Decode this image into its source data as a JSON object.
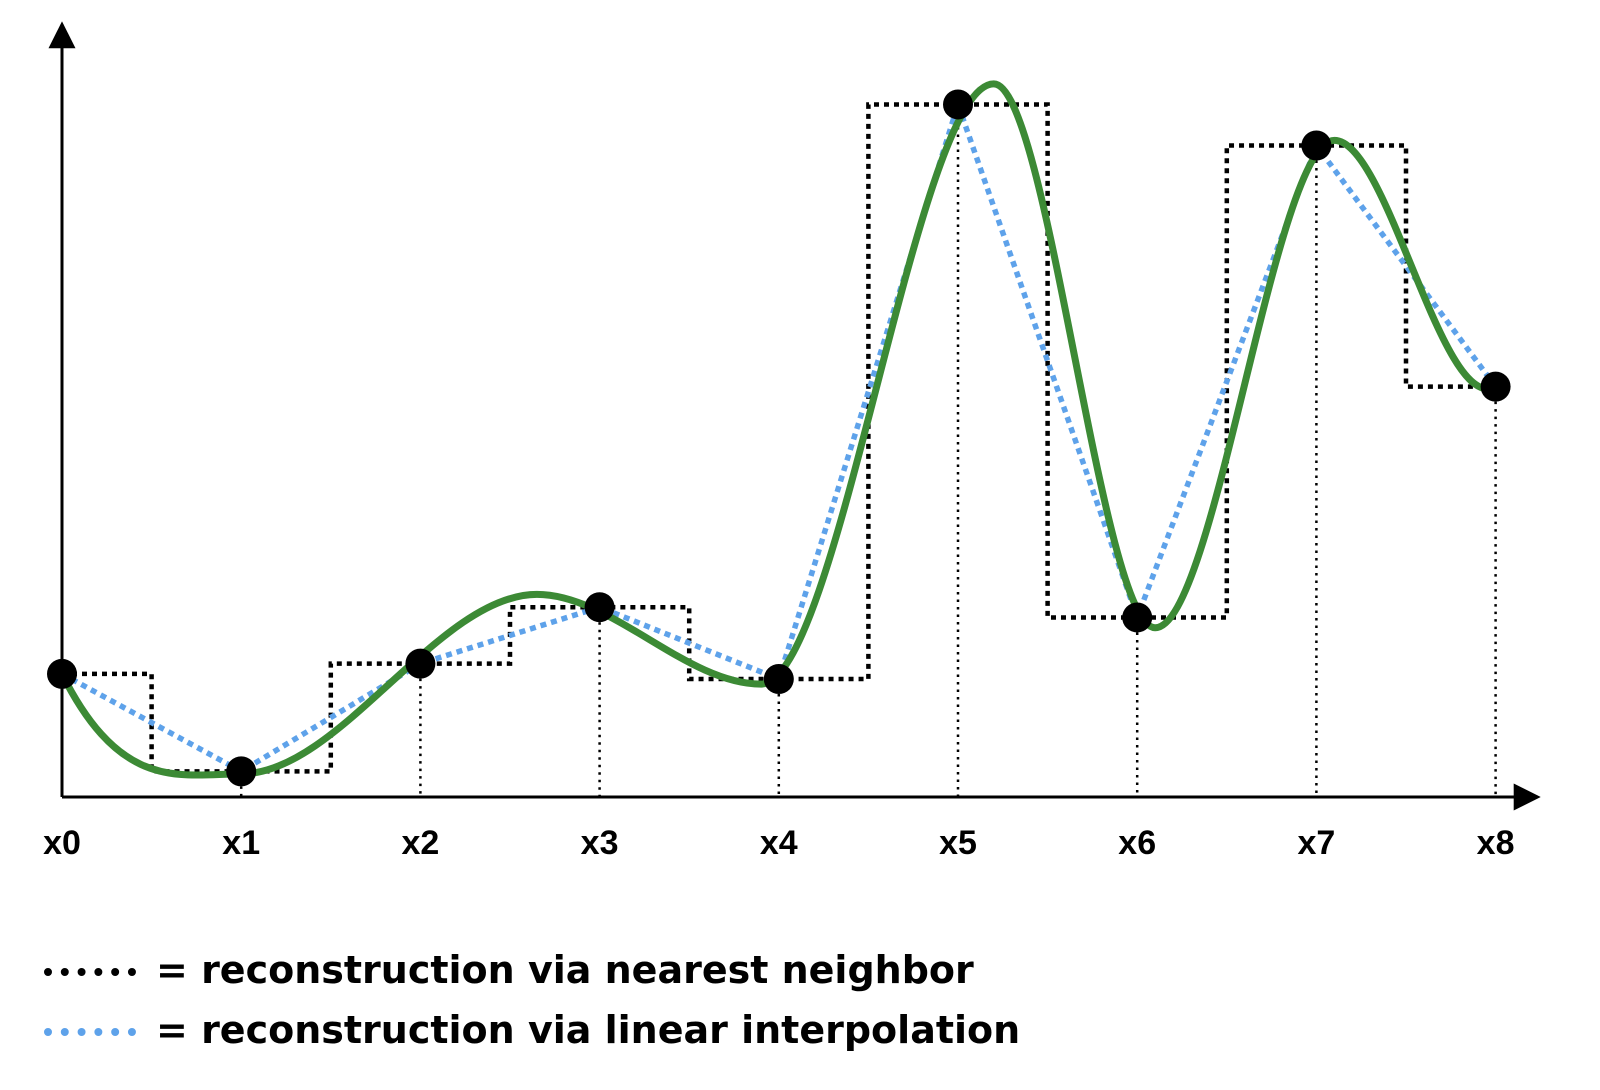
{
  "chart_data": {
    "type": "line",
    "x_ticks": [
      "x0",
      "x1",
      "x2",
      "x3",
      "x4",
      "x5",
      "x6",
      "x7",
      "x8"
    ],
    "y_axis_labels": false,
    "samples": [
      2.4,
      0.5,
      2.6,
      3.7,
      2.3,
      13.5,
      3.5,
      12.7,
      8.0
    ],
    "true_signal_peaks": [
      {
        "x": 0.0,
        "y": 2.4
      },
      {
        "x": 1.0,
        "y": 0.45
      },
      {
        "x": 2.65,
        "y": 3.95
      },
      {
        "x": 3.9,
        "y": 2.2
      },
      {
        "x": 5.2,
        "y": 13.9
      },
      {
        "x": 6.1,
        "y": 3.3
      },
      {
        "x": 7.1,
        "y": 12.8
      },
      {
        "x": 8.0,
        "y": 8.0
      }
    ],
    "ylim": [
      0,
      14.5
    ],
    "xlim": [
      0,
      8.2
    ],
    "series": [
      {
        "name": "",
        "style": "solid",
        "color": "#3c8a35",
        "role": "true_signal"
      },
      {
        "name": "reconstruction via nearest neighbor",
        "style": "dotted",
        "color": "#000000",
        "role": "nearest"
      },
      {
        "name": "reconstruction via linear interpolation",
        "style": "dotted",
        "color": "#5ea2ea",
        "role": "linear"
      }
    ]
  },
  "legend": {
    "nearest_label": "= reconstruction via nearest neighbor",
    "linear_label": "= reconstruction via linear interpolation",
    "nearest_color": "#000000",
    "linear_color": "#5ea2ea"
  }
}
